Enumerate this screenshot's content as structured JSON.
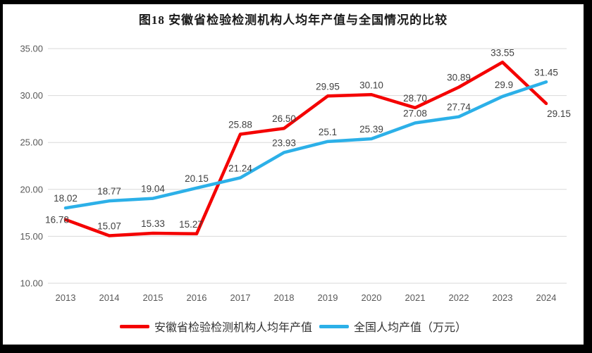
{
  "title": "图18 安徽省检验检测机构人均年产值与全国情况的比较",
  "chart_data": {
    "type": "line",
    "title": "图18 安徽省检验检测机构人均年产值与全国情况的比较",
    "categories": [
      "2013",
      "2014",
      "2015",
      "2016",
      "2017",
      "2018",
      "2019",
      "2020",
      "2021",
      "2022",
      "2023",
      "2024"
    ],
    "series": [
      {
        "name": "安徽省检验检测机构人均年产值",
        "color": "#F40000",
        "values": [
          16.78,
          15.07,
          15.33,
          15.27,
          25.88,
          26.5,
          29.95,
          30.1,
          28.7,
          30.89,
          33.55,
          29.15
        ],
        "labels": [
          "16.78",
          "15.07",
          "15.33",
          "15.27",
          "25.88",
          "26.50",
          "29.95",
          "30.10",
          "28.70",
          "30.89",
          "33.55",
          "29.15"
        ]
      },
      {
        "name": "全国人均产值（万元）",
        "color": "#2CB0E8",
        "values": [
          18.02,
          18.77,
          19.04,
          20.15,
          21.24,
          23.93,
          25.1,
          25.39,
          27.08,
          27.74,
          29.9,
          31.45
        ],
        "labels": [
          "18.02",
          "18.77",
          "19.04",
          "20.15",
          "21.24",
          "23.93",
          "25.1",
          "25.39",
          "27.08",
          "27.74",
          "29.9",
          "31.45"
        ]
      }
    ],
    "ylim": [
      10,
      35
    ],
    "ytick_step": 5,
    "ytick_labels": [
      "10.00",
      "15.00",
      "20.00",
      "25.00",
      "30.00",
      "35.00"
    ],
    "xlabel": "",
    "ylabel": "",
    "grid": "horizontal",
    "gridline_color": "#D9D9D9",
    "axis_label_color": "#595959",
    "data_label_color": "#404040",
    "legend_position": "bottom",
    "frame_border_color": "#000000"
  }
}
